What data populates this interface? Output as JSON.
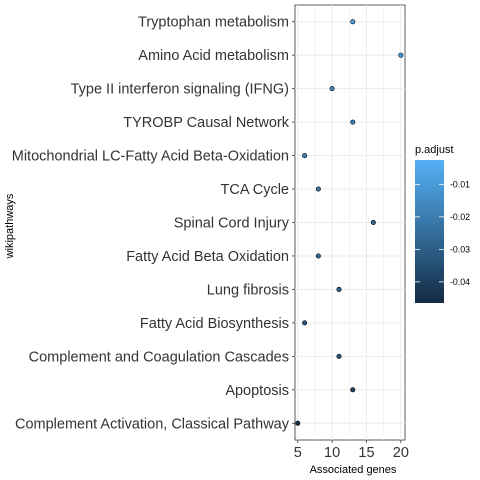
{
  "chart_data": {
    "type": "scatter",
    "xlabel": "Associated genes",
    "ylabel": "wikipathways",
    "xlim": [
      4.6,
      20.6
    ],
    "x_ticks": [
      5,
      10,
      15,
      20
    ],
    "categories": [
      "Tryptophan metabolism",
      "Amino Acid metabolism",
      "Type II interferon signaling (IFNG)",
      "TYROBP Causal Network",
      "Mitochondrial LC-Fatty Acid Beta-Oxidation",
      "TCA Cycle",
      "Spinal Cord Injury",
      "Fatty Acid Beta Oxidation",
      "Lung fibrosis",
      "Fatty Acid Biosynthesis",
      "Complement and Coagulation Cascades",
      "Apoptosis",
      "Complement Activation, Classical Pathway"
    ],
    "points": [
      {
        "category": "Tryptophan metabolism",
        "x": 13,
        "p_adjust": -0.008
      },
      {
        "category": "Amino Acid metabolism",
        "x": 20,
        "p_adjust": -0.012
      },
      {
        "category": "Type II interferon signaling (IFNG)",
        "x": 10,
        "p_adjust": -0.016
      },
      {
        "category": "TYROBP Causal Network",
        "x": 13,
        "p_adjust": -0.017
      },
      {
        "category": "Mitochondrial LC-Fatty Acid Beta-Oxidation",
        "x": 6,
        "p_adjust": -0.019
      },
      {
        "category": "TCA Cycle",
        "x": 8,
        "p_adjust": -0.021
      },
      {
        "category": "Spinal Cord Injury",
        "x": 16,
        "p_adjust": -0.027
      },
      {
        "category": "Fatty Acid Beta Oxidation",
        "x": 8,
        "p_adjust": -0.028
      },
      {
        "category": "Lung fibrosis",
        "x": 11,
        "p_adjust": -0.029
      },
      {
        "category": "Fatty Acid Biosynthesis",
        "x": 6,
        "p_adjust": -0.031
      },
      {
        "category": "Complement and Coagulation Cascades",
        "x": 11,
        "p_adjust": -0.032
      },
      {
        "category": "Apoptosis",
        "x": 13,
        "p_adjust": -0.038
      },
      {
        "category": "Complement Activation, Classical Pathway",
        "x": 5,
        "p_adjust": -0.045
      }
    ],
    "legend": {
      "title": "p.adjust",
      "placement": "right",
      "range": [
        -0.0465,
        -0.0025
      ],
      "ticks": [
        -0.01,
        -0.02,
        -0.03,
        -0.04
      ],
      "tick_labels": [
        "-0.01",
        "-0.02",
        "-0.03",
        "-0.04"
      ],
      "color_high": "#56b1f7",
      "color_low": "#132b43"
    },
    "grid": true,
    "panel_background": "#ffffff",
    "grid_color": "#ebebeb"
  }
}
